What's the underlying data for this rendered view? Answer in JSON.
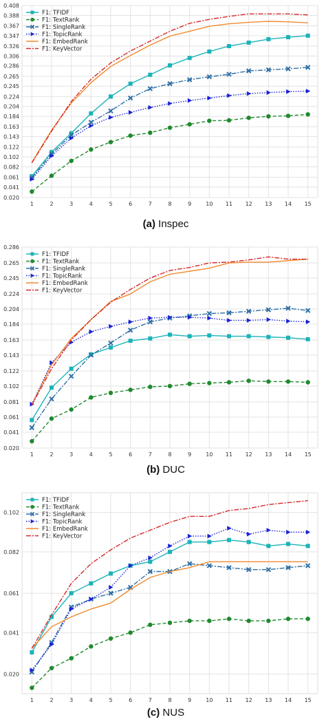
{
  "chart_data": [
    {
      "type": "line",
      "caption_letter": "(a)",
      "caption_text": "Inspec",
      "x": [
        1,
        2,
        3,
        4,
        5,
        6,
        7,
        8,
        9,
        10,
        11,
        12,
        13,
        14,
        15
      ],
      "yticks": [
        "0.020",
        "0.041",
        "0.061",
        "0.082",
        "0.102",
        "0.122",
        "0.143",
        "0.163",
        "0.184",
        "0.204",
        "0.224",
        "0.245",
        "0.265",
        "0.286",
        "0.306",
        "0.326",
        "0.347",
        "0.367",
        "0.388",
        "0.408"
      ],
      "ylim": [
        0.02,
        0.408
      ],
      "grid": true,
      "legend_position": "top-left",
      "series": [
        {
          "name": "F1: TFIDF",
          "color": "#1ab3b8",
          "dash": "solid",
          "marker": "square",
          "values": [
            0.063,
            0.112,
            0.15,
            0.19,
            0.224,
            0.25,
            0.268,
            0.287,
            0.302,
            0.315,
            0.326,
            0.333,
            0.34,
            0.344,
            0.347
          ]
        },
        {
          "name": "F1: TextRank",
          "color": "#1f8a2e",
          "dash": "dashed",
          "marker": "circle",
          "values": [
            0.032,
            0.064,
            0.094,
            0.117,
            0.132,
            0.145,
            0.151,
            0.161,
            0.168,
            0.175,
            0.176,
            0.181,
            0.184,
            0.185,
            0.188
          ]
        },
        {
          "name": "F1: SingleRank",
          "color": "#2e6fa6",
          "dash": "dashdot",
          "marker": "x",
          "values": [
            0.06,
            0.108,
            0.146,
            0.172,
            0.195,
            0.221,
            0.24,
            0.25,
            0.258,
            0.264,
            0.269,
            0.276,
            0.278,
            0.28,
            0.283
          ]
        },
        {
          "name": "F1: TopicRank",
          "color": "#1a22d6",
          "dash": "dotted",
          "marker": "triangle",
          "values": [
            0.057,
            0.104,
            0.14,
            0.165,
            0.182,
            0.192,
            0.202,
            0.21,
            0.216,
            0.221,
            0.226,
            0.23,
            0.232,
            0.234,
            0.235
          ]
        },
        {
          "name": "F1: EmbedRank",
          "color": "#f08a2c",
          "dash": "solid",
          "marker": "none",
          "values": [
            0.091,
            0.156,
            0.211,
            0.252,
            0.285,
            0.307,
            0.328,
            0.346,
            0.356,
            0.366,
            0.371,
            0.374,
            0.376,
            0.375,
            0.373
          ]
        },
        {
          "name": "F1: KeyVector",
          "color": "#d62728",
          "dash": "dashdot",
          "marker": "none",
          "values": [
            0.09,
            0.154,
            0.214,
            0.259,
            0.292,
            0.316,
            0.336,
            0.356,
            0.372,
            0.38,
            0.386,
            0.391,
            0.391,
            0.391,
            0.389
          ]
        }
      ]
    },
    {
      "type": "line",
      "caption_letter": "(b)",
      "caption_text": "DUC",
      "x": [
        1,
        2,
        3,
        4,
        5,
        6,
        7,
        8,
        9,
        10,
        11,
        12,
        13,
        14,
        15
      ],
      "yticks": [
        "0.020",
        "0.041",
        "0.061",
        "0.081",
        "0.102",
        "0.122",
        "0.143",
        "0.163",
        "0.184",
        "0.204",
        "0.224",
        "0.245",
        "0.265",
        "0.286"
      ],
      "ylim": [
        0.02,
        0.286
      ],
      "grid": true,
      "legend_position": "top-left",
      "series": [
        {
          "name": "F1: TFIDF",
          "color": "#1ab3b8",
          "dash": "solid",
          "marker": "square",
          "values": [
            0.057,
            0.1,
            0.125,
            0.144,
            0.153,
            0.162,
            0.165,
            0.17,
            0.168,
            0.169,
            0.168,
            0.168,
            0.167,
            0.166,
            0.164
          ]
        },
        {
          "name": "F1: TextRank",
          "color": "#1f8a2e",
          "dash": "dashed",
          "marker": "circle",
          "values": [
            0.029,
            0.059,
            0.071,
            0.087,
            0.093,
            0.097,
            0.101,
            0.102,
            0.105,
            0.106,
            0.107,
            0.109,
            0.108,
            0.108,
            0.107
          ]
        },
        {
          "name": "F1: SingleRank",
          "color": "#2e6fa6",
          "dash": "dashdot",
          "marker": "x",
          "values": [
            0.047,
            0.085,
            0.115,
            0.143,
            0.159,
            0.176,
            0.187,
            0.192,
            0.195,
            0.198,
            0.199,
            0.201,
            0.203,
            0.205,
            0.202
          ]
        },
        {
          "name": "F1: TopicRank",
          "color": "#1a22d6",
          "dash": "dotted",
          "marker": "triangle",
          "values": [
            0.078,
            0.133,
            0.16,
            0.174,
            0.181,
            0.187,
            0.192,
            0.193,
            0.193,
            0.192,
            0.189,
            0.189,
            0.19,
            0.188,
            0.187
          ]
        },
        {
          "name": "F1: EmbedRank",
          "color": "#f08a2c",
          "dash": "solid",
          "marker": "none",
          "values": [
            0.077,
            0.13,
            0.165,
            0.19,
            0.214,
            0.224,
            0.24,
            0.25,
            0.254,
            0.258,
            0.265,
            0.266,
            0.266,
            0.268,
            0.27
          ]
        },
        {
          "name": "F1: KeyVector",
          "color": "#d62728",
          "dash": "dashdot",
          "marker": "none",
          "values": [
            0.077,
            0.125,
            0.163,
            0.19,
            0.213,
            0.23,
            0.245,
            0.255,
            0.259,
            0.265,
            0.266,
            0.269,
            0.273,
            0.27,
            0.27
          ]
        }
      ]
    },
    {
      "type": "line",
      "caption_letter": "(c)",
      "caption_text": "NUS",
      "x": [
        1,
        2,
        3,
        4,
        5,
        6,
        7,
        8,
        9,
        10,
        11,
        12,
        13,
        14,
        15
      ],
      "yticks": [
        "0.020",
        "0.041",
        "0.061",
        "0.082",
        "0.102"
      ],
      "ylim": [
        0.01,
        0.112
      ],
      "grid": true,
      "legend_position": "top-left",
      "series": [
        {
          "name": "F1: TFIDF",
          "color": "#1ab3b8",
          "dash": "solid",
          "marker": "square",
          "values": [
            0.031,
            0.049,
            0.061,
            0.066,
            0.071,
            0.075,
            0.077,
            0.082,
            0.087,
            0.087,
            0.088,
            0.087,
            0.085,
            0.086,
            0.085
          ]
        },
        {
          "name": "F1: TextRank",
          "color": "#1f8a2e",
          "dash": "dashed",
          "marker": "circle",
          "values": [
            0.013,
            0.023,
            0.028,
            0.034,
            0.038,
            0.041,
            0.045,
            0.046,
            0.047,
            0.047,
            0.048,
            0.047,
            0.047,
            0.048,
            0.048
          ]
        },
        {
          "name": "F1: SingleRank",
          "color": "#2e6fa6",
          "dash": "dashdot",
          "marker": "x",
          "values": [
            0.021,
            0.036,
            0.054,
            0.058,
            0.061,
            0.064,
            0.072,
            0.072,
            0.076,
            0.075,
            0.074,
            0.073,
            0.073,
            0.074,
            0.075
          ]
        },
        {
          "name": "F1: TopicRank",
          "color": "#1a22d6",
          "dash": "dotted",
          "marker": "triangle",
          "values": [
            0.022,
            0.035,
            0.053,
            0.058,
            0.064,
            0.075,
            0.079,
            0.085,
            0.09,
            0.09,
            0.094,
            0.091,
            0.093,
            0.092,
            0.092
          ]
        },
        {
          "name": "F1: EmbedRank",
          "color": "#f08a2c",
          "dash": "solid",
          "marker": "none",
          "values": [
            0.033,
            0.044,
            0.049,
            0.053,
            0.056,
            0.063,
            0.069,
            0.072,
            0.074,
            0.077,
            0.077,
            0.077,
            0.077,
            0.077,
            0.077
          ]
        },
        {
          "name": "F1: KeyVector",
          "color": "#d62728",
          "dash": "dashdot",
          "marker": "none",
          "values": [
            0.033,
            0.05,
            0.066,
            0.076,
            0.083,
            0.089,
            0.093,
            0.097,
            0.1,
            0.1,
            0.103,
            0.104,
            0.106,
            0.107,
            0.108
          ]
        }
      ]
    }
  ]
}
